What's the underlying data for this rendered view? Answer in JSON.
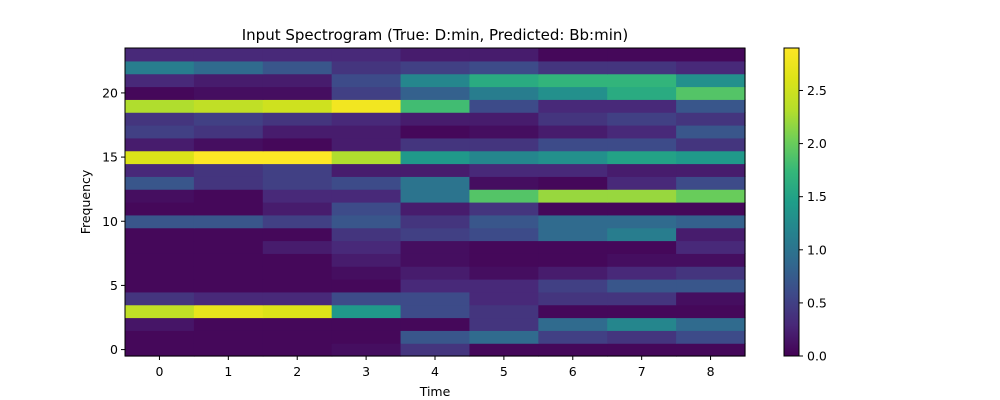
{
  "chart_data": {
    "type": "heatmap",
    "title": "Input Spectrogram (True: D:min, Predicted: Bb:min)",
    "xlabel": "Time",
    "ylabel": "Frequency",
    "x": [
      0,
      1,
      2,
      3,
      4,
      5,
      6,
      7,
      8
    ],
    "y": [
      0,
      1,
      2,
      3,
      4,
      5,
      6,
      7,
      8,
      9,
      10,
      11,
      12,
      13,
      14,
      15,
      16,
      17,
      18,
      19,
      20,
      21,
      22,
      23
    ],
    "xticks": [
      "0",
      "1",
      "2",
      "3",
      "4",
      "5",
      "6",
      "7",
      "8"
    ],
    "yticks": [
      "0",
      "5",
      "10",
      "15",
      "20"
    ],
    "colormap": "viridis",
    "colorbar": {
      "range": [
        0,
        2.9
      ],
      "ticks": [
        "0.0",
        "0.5",
        "1.0",
        "1.5",
        "2.0",
        "2.5"
      ],
      "tick_values": [
        0,
        0.5,
        1.0,
        1.5,
        2.0,
        2.5
      ]
    },
    "values": [
      [
        0.05,
        0.05,
        0.05,
        0.1,
        0.4,
        0.05,
        0.05,
        0.05,
        0.05
      ],
      [
        0.05,
        0.05,
        0.05,
        0.05,
        0.7,
        0.9,
        0.5,
        0.4,
        0.6
      ],
      [
        0.15,
        0.05,
        0.05,
        0.05,
        0.05,
        0.4,
        0.9,
        1.2,
        0.9
      ],
      [
        2.4,
        2.7,
        2.6,
        1.4,
        0.6,
        0.4,
        0.05,
        0.05,
        0.05
      ],
      [
        0.4,
        0.3,
        0.3,
        0.6,
        0.6,
        0.3,
        0.4,
        0.4,
        0.1
      ],
      [
        0.05,
        0.05,
        0.05,
        0.05,
        0.3,
        0.3,
        0.5,
        0.7,
        0.7
      ],
      [
        0.05,
        0.05,
        0.05,
        0.1,
        0.2,
        0.1,
        0.2,
        0.3,
        0.4
      ],
      [
        0.05,
        0.05,
        0.05,
        0.2,
        0.1,
        0.05,
        0.05,
        0.1,
        0.1
      ],
      [
        0.05,
        0.05,
        0.2,
        0.3,
        0.1,
        0.05,
        0.05,
        0.05,
        0.3
      ],
      [
        0.05,
        0.05,
        0.05,
        0.4,
        0.5,
        0.6,
        0.9,
        1.1,
        0.2
      ],
      [
        0.7,
        0.7,
        0.5,
        0.7,
        0.4,
        0.7,
        0.9,
        0.9,
        0.8
      ],
      [
        0.05,
        0.05,
        0.2,
        0.6,
        0.2,
        0.4,
        0.05,
        0.05,
        0.05
      ],
      [
        0.1,
        0.05,
        0.3,
        0.3,
        1.0,
        1.9,
        2.2,
        2.2,
        2.0
      ],
      [
        0.7,
        0.4,
        0.5,
        0.6,
        1.0,
        0.1,
        0.05,
        0.3,
        0.6
      ],
      [
        0.3,
        0.4,
        0.5,
        0.2,
        0.2,
        0.3,
        0.3,
        0.2,
        0.2
      ],
      [
        2.6,
        2.9,
        2.9,
        2.3,
        1.4,
        1.2,
        1.3,
        1.5,
        1.4
      ],
      [
        0.2,
        0.1,
        0.05,
        0.2,
        0.4,
        0.4,
        0.6,
        0.6,
        0.4
      ],
      [
        0.5,
        0.4,
        0.2,
        0.2,
        0.05,
        0.1,
        0.2,
        0.3,
        0.7
      ],
      [
        0.4,
        0.5,
        0.4,
        0.3,
        0.2,
        0.2,
        0.4,
        0.5,
        0.4
      ],
      [
        2.3,
        2.4,
        2.5,
        2.8,
        1.8,
        0.6,
        0.3,
        0.3,
        0.7
      ],
      [
        0.05,
        0.1,
        0.1,
        0.5,
        0.8,
        1.1,
        1.3,
        1.6,
        1.9
      ],
      [
        0.3,
        0.2,
        0.2,
        0.6,
        1.2,
        1.6,
        1.7,
        1.7,
        1.3
      ],
      [
        1.1,
        0.9,
        0.7,
        0.4,
        0.5,
        0.6,
        0.4,
        0.4,
        0.3
      ],
      [
        0.3,
        0.3,
        0.3,
        0.3,
        0.2,
        0.2,
        0.05,
        0.05,
        0.05
      ]
    ]
  }
}
